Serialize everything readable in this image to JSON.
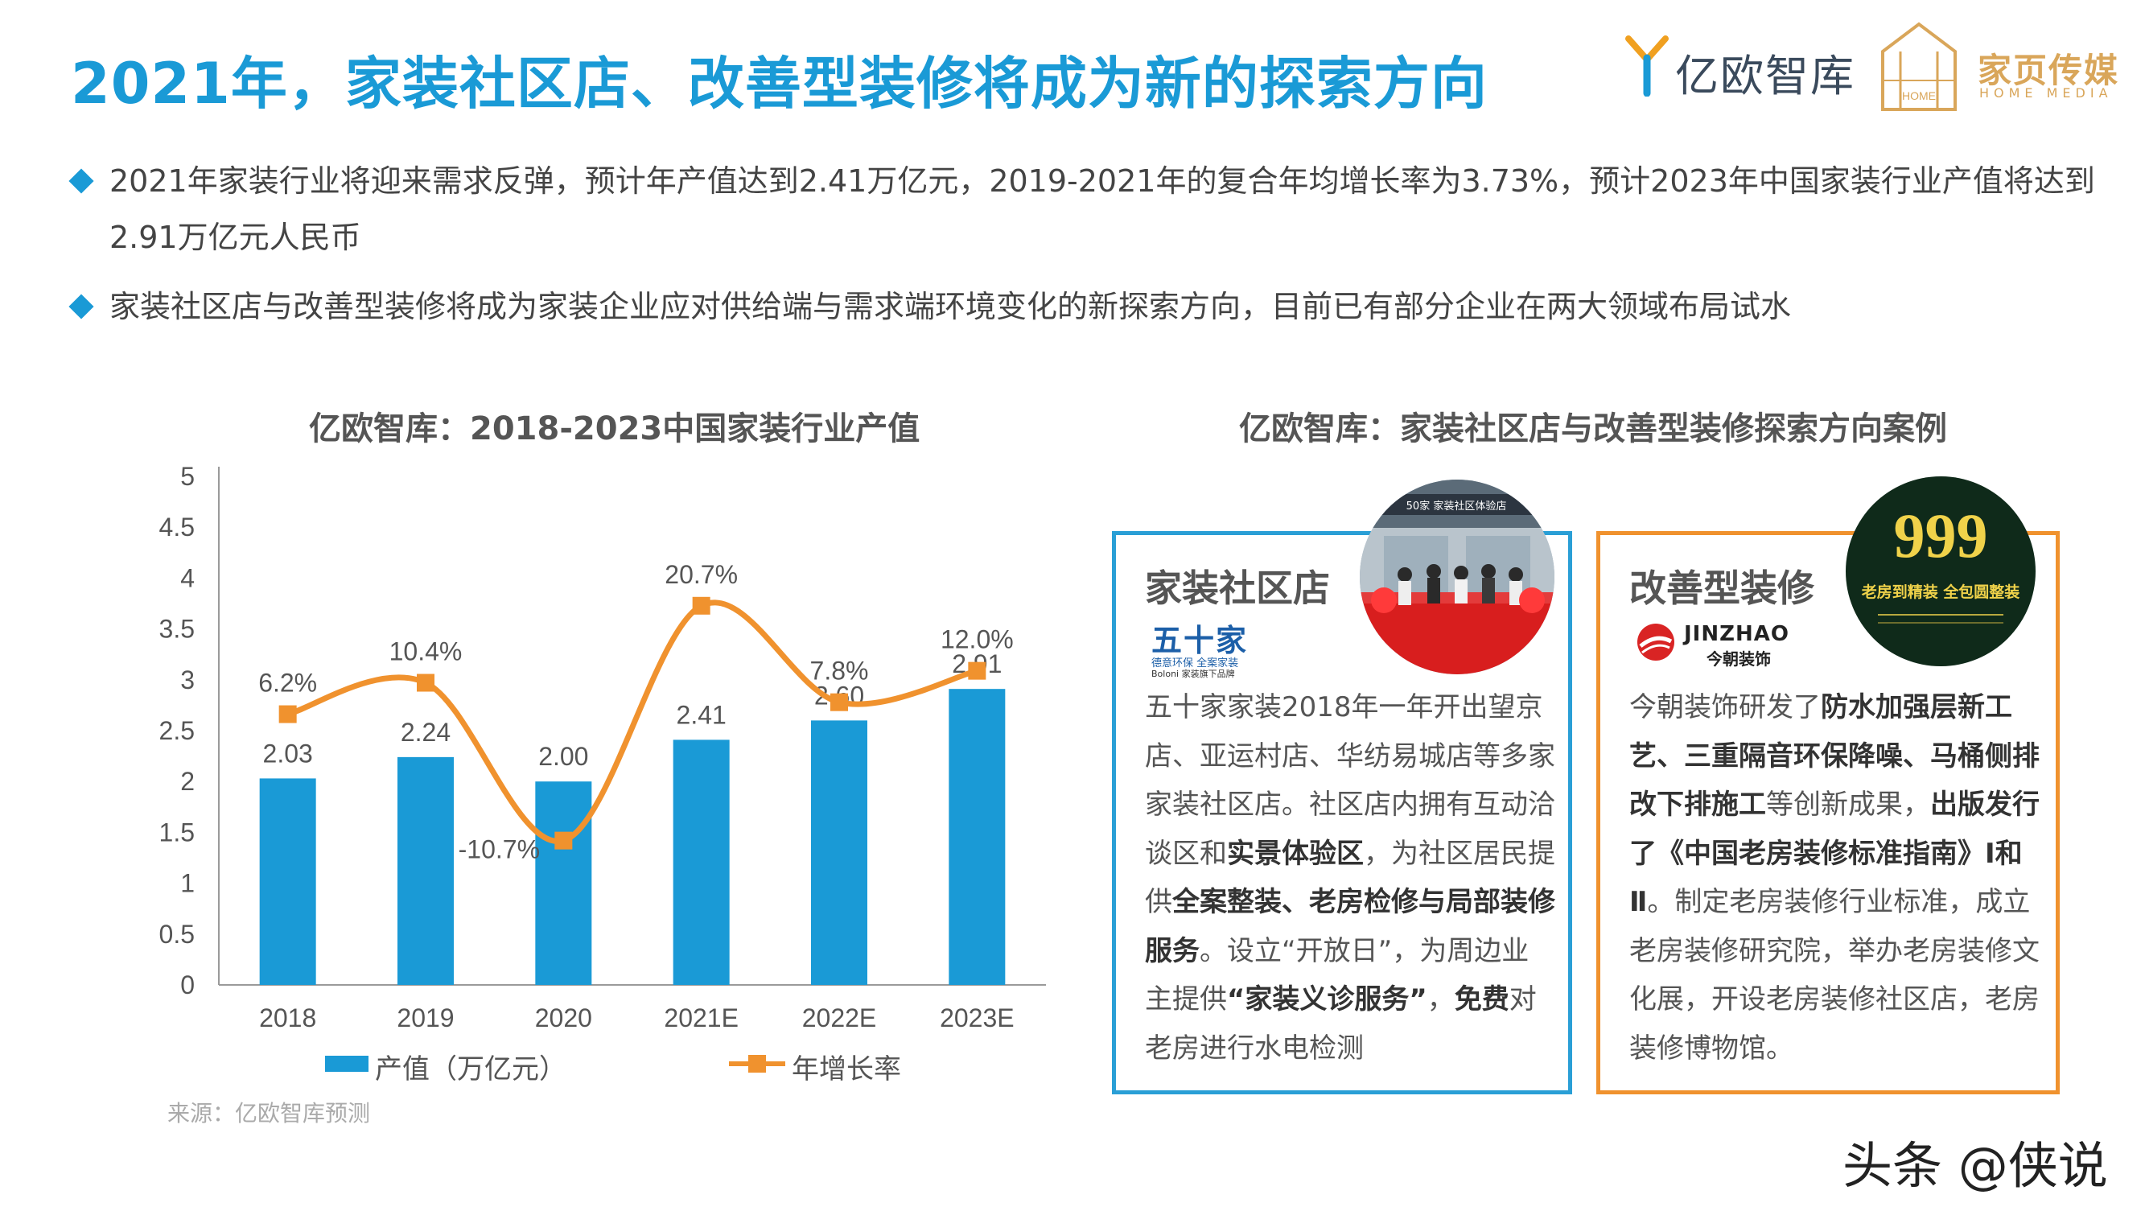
{
  "page": {
    "title": "2021年，家装社区店、改善型装修将成为新的探索方向",
    "bullets": [
      "2021年家装行业将迎来需求反弹，预计年产值达到2.41万亿元，2019-2021年的复合年均增长率为3.73%，预计2023年中国家装行业产值将达到2.91万亿元人民币",
      "家装社区店与改善型装修将成为家装企业应对供给端与需求端环境变化的新探索方向，目前已有部分企业在两大领域布局试水"
    ],
    "logos": {
      "yiou": "亿欧智库",
      "jiaye_cn": "家页传媒",
      "jiaye_en": "HOME MEDIA",
      "jiaye_box": "HOME"
    },
    "source": "来源：亿欧智库预测",
    "watermark": "头条 @侠说"
  },
  "chart_data": {
    "type": "bar",
    "title": "亿欧智库：2018-2023中国家装行业产值",
    "categories": [
      "2018",
      "2019",
      "2020",
      "2021E",
      "2022E",
      "2023E"
    ],
    "series": [
      {
        "name": "产值（万亿元）",
        "type": "bar",
        "axis": "left",
        "color": "#1a9ad6",
        "values": [
          2.03,
          2.24,
          2.0,
          2.41,
          2.6,
          2.91
        ],
        "labels": [
          "2.03",
          "2.24",
          "2.00",
          "2.41",
          "2.60",
          "2.91"
        ]
      },
      {
        "name": "年增长率",
        "type": "line",
        "smooth": true,
        "axis": "secondary",
        "color": "#f0922e",
        "values": [
          6.2,
          10.4,
          -10.7,
          20.7,
          7.8,
          12.0
        ],
        "labels": [
          "6.2%",
          "10.4%",
          "-10.7%",
          "20.7%",
          "7.8%",
          "12.0%"
        ]
      }
    ],
    "ylim": [
      0,
      5
    ],
    "yticks": [
      "0",
      "0.5",
      "1",
      "1.5",
      "2",
      "2.5",
      "3",
      "3.5",
      "4",
      "4.5",
      "5"
    ],
    "xlabel": "",
    "ylabel": "",
    "grid": false,
    "legend": "bottom"
  },
  "cases": {
    "title": "亿欧智库：家装社区店与改善型装修探索方向案例",
    "community": {
      "title": "家装社区店",
      "brand_cn": "五十家",
      "brand_sub": "德意环保 全案家装",
      "brand_en": "Boloni 家装旗下品牌",
      "photo_sign": "50家 家装社区体验店",
      "parts": [
        {
          "t": "五十家家装2018年一年开出望京店、亚运村店、华纺易城店等多家家装社区店。社区店内拥有互动洽谈区和",
          "b": false
        },
        {
          "t": "实景体验区",
          "b": true
        },
        {
          "t": "，为社区居民提供",
          "b": false
        },
        {
          "t": "全案整装、老房检修与局部装修服务",
          "b": true
        },
        {
          "t": "。设立“开放日”，为周边业主提供",
          "b": false
        },
        {
          "t": "“家装义诊服务”",
          "b": true
        },
        {
          "t": "，",
          "b": false
        },
        {
          "t": "免费",
          "b": true
        },
        {
          "t": "对老房进行水电检测",
          "b": false
        }
      ]
    },
    "improvement": {
      "title": "改善型装修",
      "brand_en": "JINZHAO",
      "brand_cn": "今朝装饰",
      "photo_big": "999",
      "photo_text": "老房到精装 全包圆整装",
      "parts": [
        {
          "t": "今朝装饰研发了",
          "b": false
        },
        {
          "t": "防水加强层新工艺、三重隔音环保降噪、马桶侧排改下排施工",
          "b": true
        },
        {
          "t": "等创新成果，",
          "b": false
        },
        {
          "t": "出版发行了《中国老房装修标准指南》Ⅰ和Ⅱ",
          "b": true
        },
        {
          "t": "。制定老房装修行业标准，成立老房装修研究院，举办老房装修文化展，开设老房装修社区店，老房装修博物馆。",
          "b": false
        }
      ]
    }
  },
  "colors": {
    "accent": "#1a9ad6",
    "orange": "#f0922e",
    "gold": "#d9a65a"
  }
}
